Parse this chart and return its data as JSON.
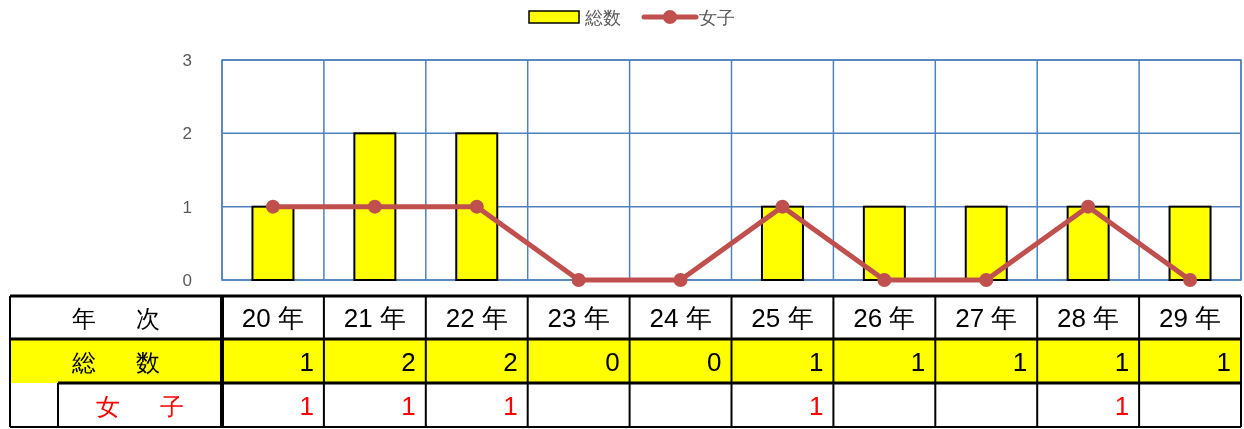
{
  "chart_data": {
    "type": "bar",
    "legend": "top",
    "grid": true,
    "xlabel": "年次",
    "ylim": [
      0,
      3
    ],
    "yticks": [
      0,
      1,
      2,
      3
    ],
    "categories": [
      "20 年",
      "21 年",
      "22 年",
      "23 年",
      "24 年",
      "25 年",
      "26 年",
      "27 年",
      "28 年",
      "29 年"
    ],
    "series": [
      {
        "name": "総数",
        "color": "#ffff00",
        "values": [
          1,
          2,
          2,
          0,
          0,
          1,
          1,
          1,
          1,
          1
        ],
        "value_labels": [
          "1",
          "2",
          "2",
          "0",
          "0",
          "1",
          "1",
          "1",
          "1",
          "1"
        ]
      },
      {
        "name": "女子",
        "type": "line",
        "color": "#c0504d",
        "marker": "circle",
        "values": [
          1,
          1,
          1,
          0,
          0,
          1,
          0,
          0,
          1,
          0
        ],
        "value_labels": [
          "1",
          "1",
          "1",
          null,
          null,
          "1",
          null,
          null,
          "1",
          null
        ]
      }
    ]
  }
}
